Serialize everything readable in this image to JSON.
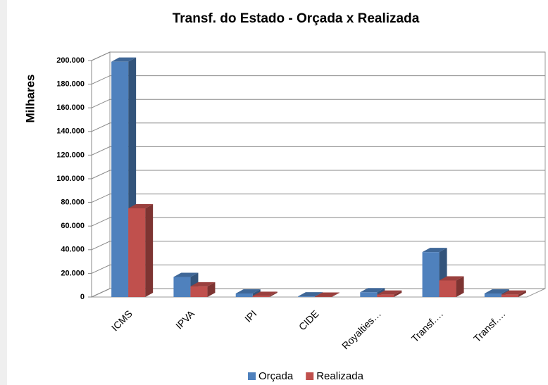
{
  "chart_data": {
    "type": "bar3d",
    "title": "Transf. do Estado - Orçada x Realizada",
    "y_label": "Milhares",
    "categories": [
      "ICMS",
      "IPVA",
      "IPI",
      "CIDE",
      "Royalties…",
      "Transf.…",
      "Transf.…"
    ],
    "series": [
      {
        "name": "Orçada",
        "color": "#4f81bd",
        "values": [
          199000,
          17000,
          3000,
          500,
          4000,
          38000,
          3000
        ]
      },
      {
        "name": "Realizada",
        "color": "#c0504d",
        "values": [
          75000,
          9000,
          1000,
          300,
          2000,
          14000,
          2000
        ]
      }
    ],
    "ylim": [
      0,
      200000
    ],
    "yticks": [
      0,
      {
        "value": 20000,
        "label": "20.000"
      },
      {
        "value": 40000,
        "label": "40.000"
      },
      {
        "value": 60000,
        "label": "60.000"
      },
      {
        "value": 80000,
        "label": "80.000"
      },
      {
        "value": 100000,
        "label": "100.000"
      },
      {
        "value": 120000,
        "label": "120.000"
      },
      {
        "value": 140000,
        "label": "140.000"
      },
      {
        "value": 160000,
        "label": "160.000"
      },
      {
        "value": 180000,
        "label": "180.000"
      },
      {
        "value": 200000,
        "label": "200.000"
      }
    ],
    "grid": true,
    "legend": "bottom"
  }
}
